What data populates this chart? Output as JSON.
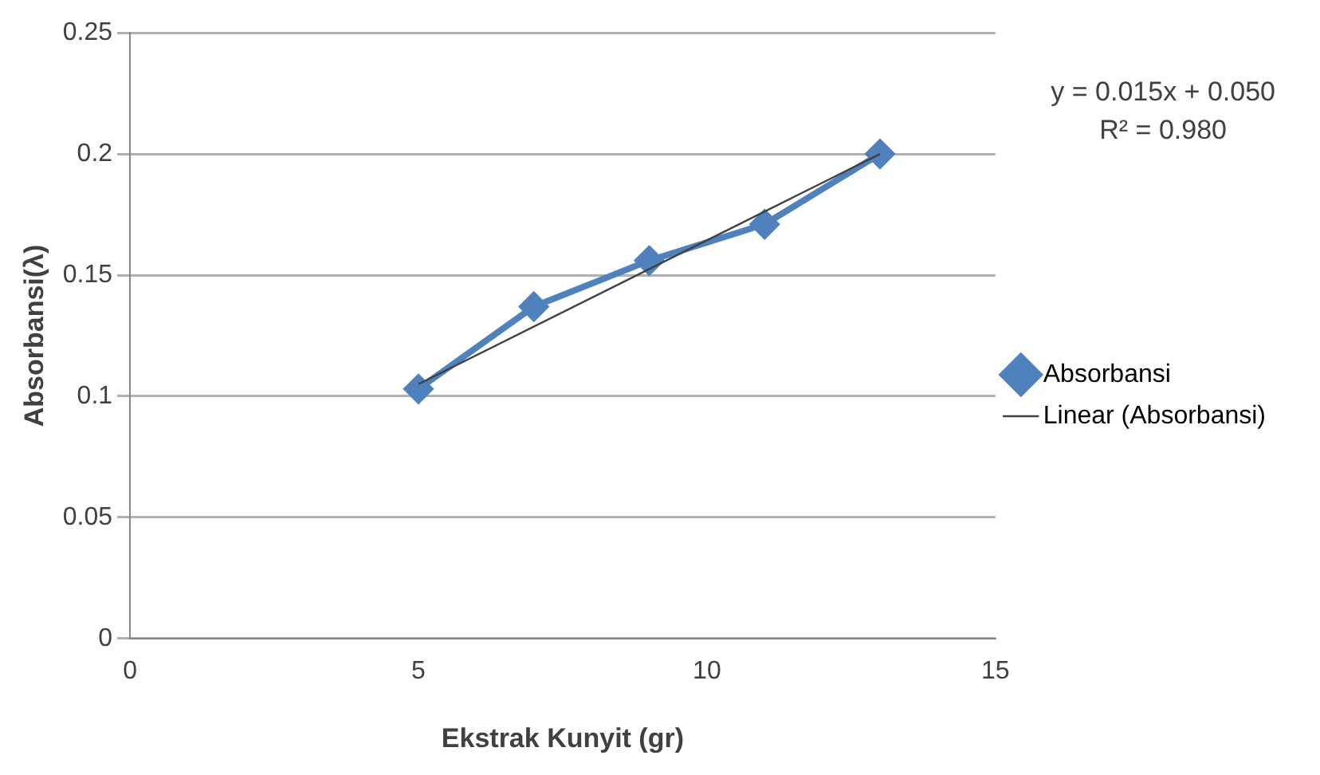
{
  "chart_data": {
    "type": "line",
    "xlabel": "Ekstrak Kunyit (gr)",
    "ylabel": "Absorbansi(λ)",
    "x": [
      5,
      7,
      9,
      11,
      13
    ],
    "series": [
      {
        "name": "Absorbansi",
        "color": "#4f81bd",
        "values": [
          0.103,
          0.137,
          0.156,
          0.171,
          0.2
        ],
        "marker": "diamond"
      },
      {
        "name": "Linear (Absorbansi)",
        "color": "#404040",
        "type": "line",
        "x": [
          5,
          13
        ],
        "values": [
          0.105,
          0.2
        ],
        "marker": "none"
      }
    ],
    "xlim": [
      0,
      15
    ],
    "xticks": [
      0,
      5,
      10,
      15
    ],
    "ylim": [
      0,
      0.25
    ],
    "yticks": [
      0,
      0.05,
      0.1,
      0.15,
      0.2,
      0.25
    ],
    "grid": "y",
    "legend": "right",
    "annotations": [
      "y = 0.015x + 0.050",
      "R² = 0.980"
    ]
  }
}
